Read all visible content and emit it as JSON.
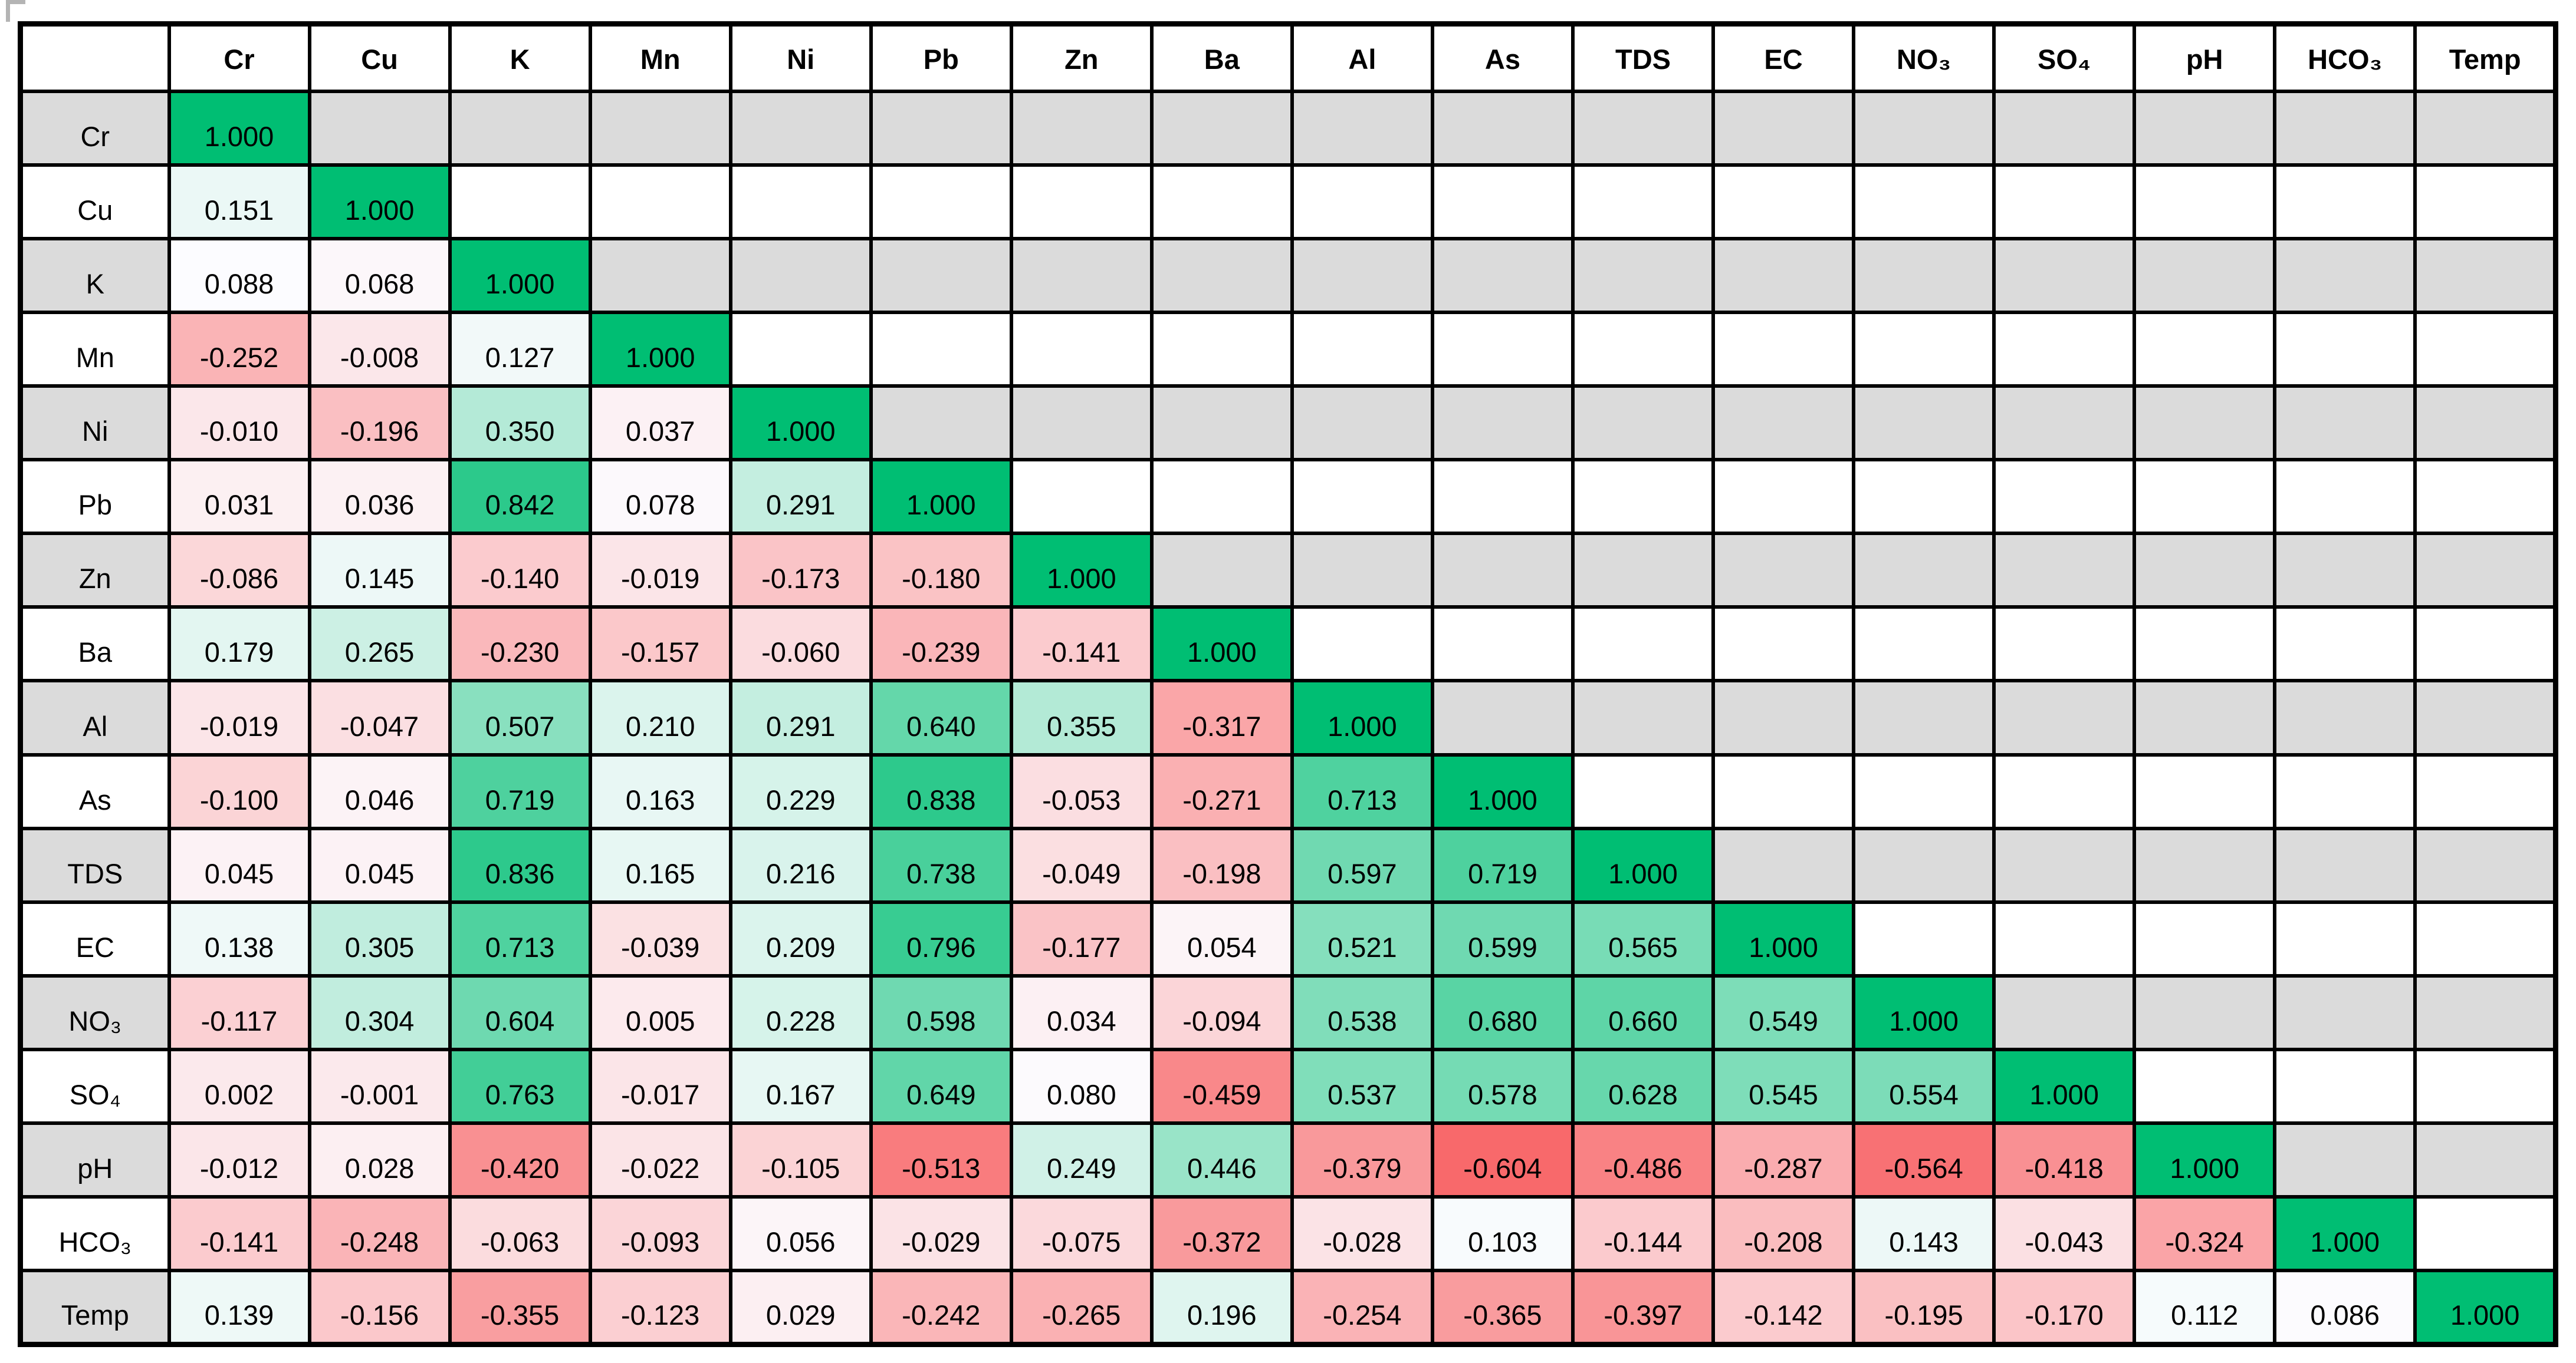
{
  "page": {
    "description": "Correlation matrix table of water quality parameters with red-white-green conditional formatting",
    "colors": {
      "grid_line": "#000000",
      "gray_row_fill": "#DBDBDB",
      "white_row_fill": "#FFFFFF",
      "header_fill": "#FFFFFF",
      "text": "#000000",
      "artifact_gray": "#9C9C9C"
    }
  },
  "chart_data": {
    "type": "heatmap",
    "title": "",
    "parameters": [
      "Cr",
      "Cu",
      "K",
      "Mn",
      "Ni",
      "Pb",
      "Zn",
      "Ba",
      "Al",
      "As",
      "TDS",
      "EC",
      "NO₃",
      "SO₄",
      "pH",
      "HCO₃",
      "Temp"
    ],
    "value_format": "3 decimals",
    "matrix_lower_triangle": [
      [
        1.0
      ],
      [
        0.151,
        1.0
      ],
      [
        0.088,
        0.068,
        1.0
      ],
      [
        -0.252,
        -0.008,
        0.127,
        1.0
      ],
      [
        -0.01,
        -0.196,
        0.35,
        0.037,
        1.0
      ],
      [
        0.031,
        0.036,
        0.842,
        0.078,
        0.291,
        1.0
      ],
      [
        -0.086,
        0.145,
        -0.14,
        -0.019,
        -0.173,
        -0.18,
        1.0
      ],
      [
        0.179,
        0.265,
        -0.23,
        -0.157,
        -0.06,
        -0.239,
        -0.141,
        1.0
      ],
      [
        -0.019,
        -0.047,
        0.507,
        0.21,
        0.291,
        0.64,
        0.355,
        -0.317,
        1.0
      ],
      [
        -0.1,
        0.046,
        0.719,
        0.163,
        0.229,
        0.838,
        -0.053,
        -0.271,
        0.713,
        1.0
      ],
      [
        0.045,
        0.045,
        0.836,
        0.165,
        0.216,
        0.738,
        -0.049,
        -0.198,
        0.597,
        0.719,
        1.0
      ],
      [
        0.138,
        0.305,
        0.713,
        -0.039,
        0.209,
        0.796,
        -0.177,
        0.054,
        0.521,
        0.599,
        0.565,
        1.0
      ],
      [
        -0.117,
        0.304,
        0.604,
        0.005,
        0.228,
        0.598,
        0.034,
        -0.094,
        0.538,
        0.68,
        0.66,
        0.549,
        1.0
      ],
      [
        0.002,
        -0.001,
        0.763,
        -0.017,
        0.167,
        0.649,
        0.08,
        -0.459,
        0.537,
        0.578,
        0.628,
        0.545,
        0.554,
        1.0
      ],
      [
        -0.012,
        0.028,
        -0.42,
        -0.022,
        -0.105,
        -0.513,
        0.249,
        0.446,
        -0.379,
        -0.604,
        -0.486,
        -0.287,
        -0.564,
        -0.418,
        1.0
      ],
      [
        -0.141,
        -0.248,
        -0.063,
        -0.093,
        0.056,
        -0.029,
        -0.075,
        -0.372,
        -0.028,
        0.103,
        -0.144,
        -0.208,
        0.143,
        -0.043,
        -0.324,
        1.0
      ],
      [
        0.139,
        -0.156,
        -0.355,
        -0.123,
        0.029,
        -0.242,
        -0.265,
        0.196,
        -0.254,
        -0.365,
        -0.397,
        -0.142,
        -0.195,
        -0.17,
        0.112,
        0.086,
        1.0
      ]
    ],
    "color_scale": {
      "min_value": -0.604,
      "mid_value": 0.09,
      "max_value": 1.0,
      "min_color": "#F8696B",
      "mid_color": "#FCFCFF",
      "max_color": "#00BE73"
    },
    "row_shading": {
      "even_rows": "#DBDBDB",
      "odd_rows": "#FFFFFF",
      "note": "applies to row-label cells and empty upper-triangle cells, alternating starting gray at first data row"
    },
    "legend_position": "none",
    "grid": true
  }
}
